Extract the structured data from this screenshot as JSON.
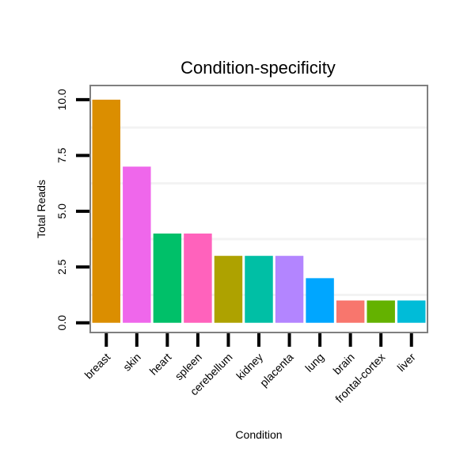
{
  "chart_data": {
    "type": "bar",
    "title": "Condition-specificity",
    "xlabel": "Condition",
    "ylabel": "Total Reads",
    "ylim": [
      -0.4,
      10.6
    ],
    "yticks": [
      0,
      2.5,
      5,
      7.5,
      10
    ],
    "ytick_labels": [
      "0.0",
      "2.5",
      "5.0",
      "7.5",
      "10.0"
    ],
    "categories": [
      "breast",
      "skin",
      "heart",
      "spleen",
      "cerebellum",
      "kidney",
      "placenta",
      "lung",
      "brain",
      "frontal-cortex",
      "liver"
    ],
    "values": [
      10,
      7,
      4,
      4,
      3,
      3,
      3,
      2,
      1,
      1,
      1
    ],
    "colors": [
      "#DB8E00",
      "#EF67EB",
      "#00C069",
      "#FF62BC",
      "#AEA200",
      "#00BFA5",
      "#B385FF",
      "#00A6FF",
      "#F8766D",
      "#64B200",
      "#00BCD8"
    ],
    "grid": true,
    "legend": "none"
  }
}
